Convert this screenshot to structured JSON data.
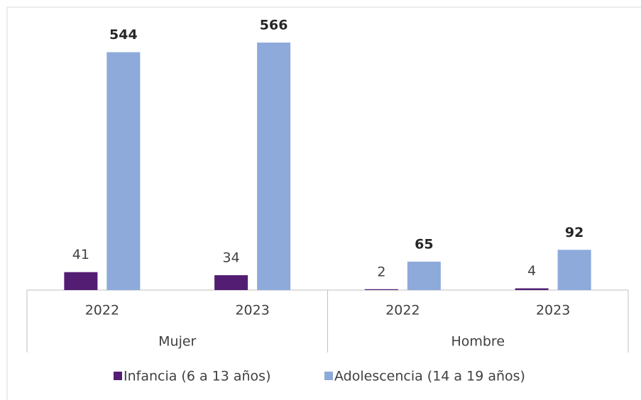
{
  "chart_data": {
    "type": "bar",
    "groups": [
      {
        "label": "Mujer",
        "categories": [
          "2022",
          "2023"
        ]
      },
      {
        "label": "Hombre",
        "categories": [
          "2022",
          "2023"
        ]
      }
    ],
    "series": [
      {
        "name": "Infancia (6 a 13 años)",
        "color": "#531d73",
        "values": [
          41,
          34,
          2,
          4
        ]
      },
      {
        "name": "Adolescencia (14 a 19 años)",
        "color": "#8eaadb",
        "values": [
          544,
          566,
          65,
          92
        ]
      }
    ],
    "legend": "bottom"
  }
}
